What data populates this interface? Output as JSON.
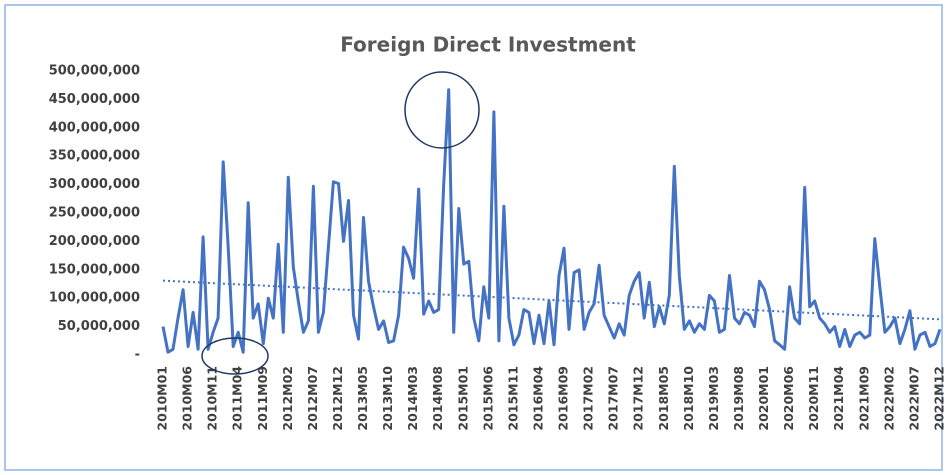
{
  "chart_data": {
    "type": "line",
    "title": "Foreign Direct Investment",
    "categories": [
      "2010M01",
      null,
      null,
      null,
      null,
      "2010M06",
      null,
      null,
      null,
      null,
      "2010M11",
      null,
      null,
      null,
      null,
      "2011M04",
      null,
      null,
      null,
      null,
      "2011M09",
      null,
      null,
      null,
      null,
      "2012M02",
      null,
      null,
      null,
      null,
      "2012M07",
      null,
      null,
      null,
      null,
      "2012M12",
      null,
      null,
      null,
      null,
      "2013M05",
      null,
      null,
      null,
      null,
      "2013M10",
      null,
      null,
      null,
      null,
      "2014M03",
      null,
      null,
      null,
      null,
      "2014M08",
      null,
      null,
      null,
      null,
      "2015M01",
      null,
      null,
      null,
      null,
      "2015M06",
      null,
      null,
      null,
      null,
      "2015M11",
      null,
      null,
      null,
      null,
      "2016M04",
      null,
      null,
      null,
      null,
      "2016M09",
      null,
      null,
      null,
      null,
      "2017M02",
      null,
      null,
      null,
      null,
      "2017M07",
      null,
      null,
      null,
      null,
      "2017M12",
      null,
      null,
      null,
      null,
      "2018M05",
      null,
      null,
      null,
      null,
      "2018M10",
      null,
      null,
      null,
      null,
      "2019M03",
      null,
      null,
      null,
      null,
      "2019M08",
      null,
      null,
      null,
      null,
      "2020M01",
      null,
      null,
      null,
      null,
      "2020M06",
      null,
      null,
      null,
      null,
      "2020M11",
      null,
      null,
      null,
      null,
      "2021M04",
      null,
      null,
      null,
      null,
      "2021M09",
      null,
      null,
      null,
      null,
      "2022M02",
      null,
      null,
      null,
      null,
      "2022M07",
      null,
      null,
      null,
      null,
      "2022M12"
    ],
    "values": [
      50000000,
      5000000,
      10000000,
      65000000,
      115000000,
      15000000,
      75000000,
      10000000,
      208000000,
      10000000,
      40000000,
      65000000,
      340000000,
      190000000,
      15000000,
      40000000,
      5000000,
      268000000,
      65000000,
      90000000,
      20000000,
      100000000,
      65000000,
      195000000,
      40000000,
      313000000,
      155000000,
      95000000,
      40000000,
      60000000,
      297000000,
      40000000,
      75000000,
      190000000,
      305000000,
      302000000,
      200000000,
      272000000,
      70000000,
      28000000,
      242000000,
      130000000,
      85000000,
      45000000,
      60000000,
      22000000,
      25000000,
      70000000,
      190000000,
      170000000,
      135000000,
      292000000,
      72000000,
      95000000,
      75000000,
      80000000,
      300000000,
      467000000,
      40000000,
      258000000,
      160000000,
      165000000,
      65000000,
      25000000,
      120000000,
      65000000,
      428000000,
      25000000,
      262000000,
      65000000,
      18000000,
      35000000,
      80000000,
      75000000,
      20000000,
      70000000,
      20000000,
      95000000,
      18000000,
      140000000,
      188000000,
      45000000,
      145000000,
      150000000,
      45000000,
      75000000,
      90000000,
      158000000,
      70000000,
      50000000,
      30000000,
      55000000,
      35000000,
      105000000,
      130000000,
      145000000,
      65000000,
      128000000,
      50000000,
      85000000,
      55000000,
      105000000,
      332000000,
      140000000,
      45000000,
      60000000,
      40000000,
      55000000,
      45000000,
      105000000,
      95000000,
      40000000,
      45000000,
      140000000,
      65000000,
      55000000,
      75000000,
      70000000,
      50000000,
      130000000,
      115000000,
      80000000,
      25000000,
      18000000,
      10000000,
      120000000,
      65000000,
      55000000,
      295000000,
      85000000,
      95000000,
      65000000,
      55000000,
      40000000,
      50000000,
      15000000,
      45000000,
      15000000,
      35000000,
      40000000,
      30000000,
      35000000,
      205000000,
      120000000,
      40000000,
      50000000,
      65000000,
      20000000,
      45000000,
      78000000,
      10000000,
      35000000,
      40000000,
      15000000,
      20000000,
      45000000
    ],
    "color": "#4472c4",
    "trendline": true,
    "ylim": [
      0,
      500000000
    ],
    "yticks": [
      {
        "value": 0,
        "label": "-"
      },
      {
        "value": 50000000,
        "label": "50,000,000"
      },
      {
        "value": 100000000,
        "label": "100,000,000"
      },
      {
        "value": 150000000,
        "label": "150,000,000"
      },
      {
        "value": 200000000,
        "label": "200,000,000"
      },
      {
        "value": 250000000,
        "label": "250,000,000"
      },
      {
        "value": 300000000,
        "label": "300,000,000"
      },
      {
        "value": 350000000,
        "label": "350,000,000"
      },
      {
        "value": 400000000,
        "label": "400,000,000"
      },
      {
        "value": 450000000,
        "label": "450,000,000"
      },
      {
        "value": 500000000,
        "label": "500,000,000"
      }
    ]
  }
}
